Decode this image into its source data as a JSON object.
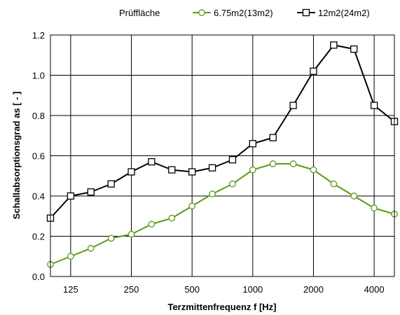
{
  "chart_data": {
    "type": "line",
    "title": "",
    "xlabel": "Terzmittenfrequenz f [Hz]",
    "ylabel": "Schallabsorptionsgrad as [ - ]",
    "legend_title": "Prüffläche",
    "legend_position": "top",
    "ylim": [
      0.0,
      1.2
    ],
    "yticks": [
      "0.0",
      "0.2",
      "0.4",
      "0.6",
      "0.8",
      "1.0",
      "1.2"
    ],
    "grid": true,
    "x": [
      100,
      125,
      160,
      200,
      250,
      315,
      400,
      500,
      630,
      800,
      1000,
      1250,
      1600,
      2000,
      2500,
      3150,
      4000,
      5000
    ],
    "xtick_labels": [
      "125",
      "250",
      "500",
      "1000",
      "2000",
      "4000"
    ],
    "series": [
      {
        "name": "6.75m2(13m2)",
        "color": "#5a9a1a",
        "marker": "circle",
        "values": [
          0.06,
          0.1,
          0.14,
          0.19,
          0.21,
          0.26,
          0.29,
          0.35,
          0.41,
          0.46,
          0.53,
          0.56,
          0.56,
          0.53,
          0.46,
          0.4,
          0.34,
          0.31
        ]
      },
      {
        "name": "12m2(24m2)",
        "color": "#000000",
        "marker": "square",
        "values": [
          0.29,
          0.4,
          0.42,
          0.46,
          0.52,
          0.57,
          0.53,
          0.52,
          0.54,
          0.58,
          0.66,
          0.69,
          0.85,
          1.02,
          1.15,
          1.13,
          0.85,
          0.77
        ]
      }
    ]
  }
}
